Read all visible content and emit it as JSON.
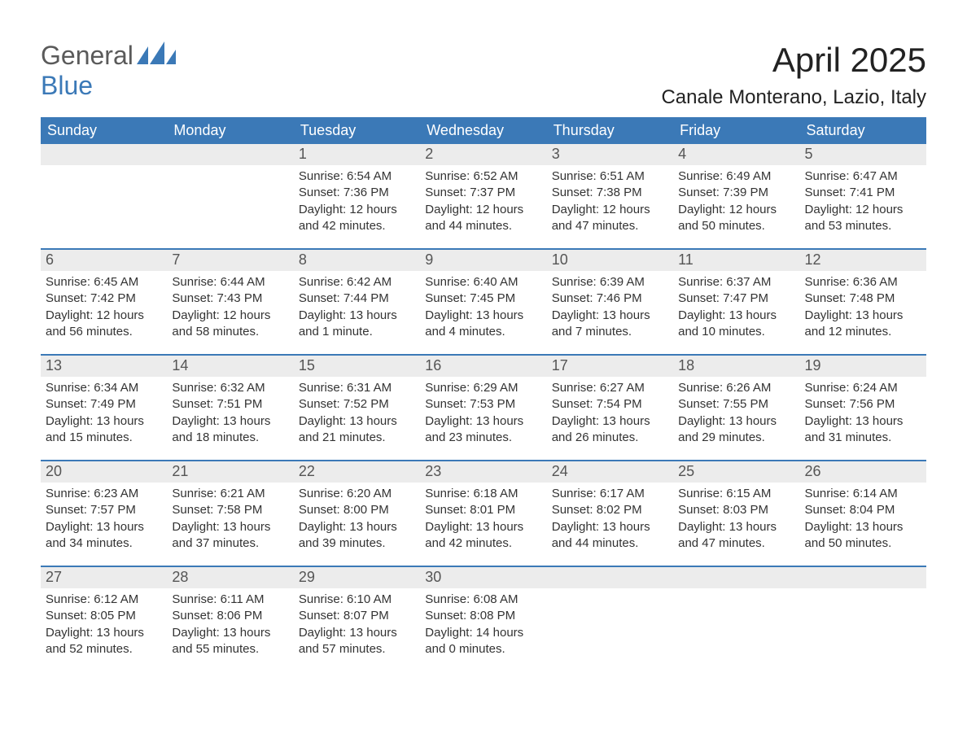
{
  "logo": {
    "part1": "General",
    "part2": "Blue"
  },
  "title": "April 2025",
  "location": "Canale Monterano, Lazio, Italy",
  "colors": {
    "header_bg": "#3b79b7",
    "header_text": "#ffffff",
    "daynum_bg": "#ececec",
    "daynum_text": "#555555",
    "body_text": "#333333",
    "divider": "#3b79b7",
    "page_bg": "#ffffff"
  },
  "day_headers": [
    "Sunday",
    "Monday",
    "Tuesday",
    "Wednesday",
    "Thursday",
    "Friday",
    "Saturday"
  ],
  "weeks": [
    [
      {
        "n": "",
        "sunrise": "",
        "sunset": "",
        "daylight": ""
      },
      {
        "n": "",
        "sunrise": "",
        "sunset": "",
        "daylight": ""
      },
      {
        "n": "1",
        "sunrise": "Sunrise: 6:54 AM",
        "sunset": "Sunset: 7:36 PM",
        "daylight": "Daylight: 12 hours and 42 minutes."
      },
      {
        "n": "2",
        "sunrise": "Sunrise: 6:52 AM",
        "sunset": "Sunset: 7:37 PM",
        "daylight": "Daylight: 12 hours and 44 minutes."
      },
      {
        "n": "3",
        "sunrise": "Sunrise: 6:51 AM",
        "sunset": "Sunset: 7:38 PM",
        "daylight": "Daylight: 12 hours and 47 minutes."
      },
      {
        "n": "4",
        "sunrise": "Sunrise: 6:49 AM",
        "sunset": "Sunset: 7:39 PM",
        "daylight": "Daylight: 12 hours and 50 minutes."
      },
      {
        "n": "5",
        "sunrise": "Sunrise: 6:47 AM",
        "sunset": "Sunset: 7:41 PM",
        "daylight": "Daylight: 12 hours and 53 minutes."
      }
    ],
    [
      {
        "n": "6",
        "sunrise": "Sunrise: 6:45 AM",
        "sunset": "Sunset: 7:42 PM",
        "daylight": "Daylight: 12 hours and 56 minutes."
      },
      {
        "n": "7",
        "sunrise": "Sunrise: 6:44 AM",
        "sunset": "Sunset: 7:43 PM",
        "daylight": "Daylight: 12 hours and 58 minutes."
      },
      {
        "n": "8",
        "sunrise": "Sunrise: 6:42 AM",
        "sunset": "Sunset: 7:44 PM",
        "daylight": "Daylight: 13 hours and 1 minute."
      },
      {
        "n": "9",
        "sunrise": "Sunrise: 6:40 AM",
        "sunset": "Sunset: 7:45 PM",
        "daylight": "Daylight: 13 hours and 4 minutes."
      },
      {
        "n": "10",
        "sunrise": "Sunrise: 6:39 AM",
        "sunset": "Sunset: 7:46 PM",
        "daylight": "Daylight: 13 hours and 7 minutes."
      },
      {
        "n": "11",
        "sunrise": "Sunrise: 6:37 AM",
        "sunset": "Sunset: 7:47 PM",
        "daylight": "Daylight: 13 hours and 10 minutes."
      },
      {
        "n": "12",
        "sunrise": "Sunrise: 6:36 AM",
        "sunset": "Sunset: 7:48 PM",
        "daylight": "Daylight: 13 hours and 12 minutes."
      }
    ],
    [
      {
        "n": "13",
        "sunrise": "Sunrise: 6:34 AM",
        "sunset": "Sunset: 7:49 PM",
        "daylight": "Daylight: 13 hours and 15 minutes."
      },
      {
        "n": "14",
        "sunrise": "Sunrise: 6:32 AM",
        "sunset": "Sunset: 7:51 PM",
        "daylight": "Daylight: 13 hours and 18 minutes."
      },
      {
        "n": "15",
        "sunrise": "Sunrise: 6:31 AM",
        "sunset": "Sunset: 7:52 PM",
        "daylight": "Daylight: 13 hours and 21 minutes."
      },
      {
        "n": "16",
        "sunrise": "Sunrise: 6:29 AM",
        "sunset": "Sunset: 7:53 PM",
        "daylight": "Daylight: 13 hours and 23 minutes."
      },
      {
        "n": "17",
        "sunrise": "Sunrise: 6:27 AM",
        "sunset": "Sunset: 7:54 PM",
        "daylight": "Daylight: 13 hours and 26 minutes."
      },
      {
        "n": "18",
        "sunrise": "Sunrise: 6:26 AM",
        "sunset": "Sunset: 7:55 PM",
        "daylight": "Daylight: 13 hours and 29 minutes."
      },
      {
        "n": "19",
        "sunrise": "Sunrise: 6:24 AM",
        "sunset": "Sunset: 7:56 PM",
        "daylight": "Daylight: 13 hours and 31 minutes."
      }
    ],
    [
      {
        "n": "20",
        "sunrise": "Sunrise: 6:23 AM",
        "sunset": "Sunset: 7:57 PM",
        "daylight": "Daylight: 13 hours and 34 minutes."
      },
      {
        "n": "21",
        "sunrise": "Sunrise: 6:21 AM",
        "sunset": "Sunset: 7:58 PM",
        "daylight": "Daylight: 13 hours and 37 minutes."
      },
      {
        "n": "22",
        "sunrise": "Sunrise: 6:20 AM",
        "sunset": "Sunset: 8:00 PM",
        "daylight": "Daylight: 13 hours and 39 minutes."
      },
      {
        "n": "23",
        "sunrise": "Sunrise: 6:18 AM",
        "sunset": "Sunset: 8:01 PM",
        "daylight": "Daylight: 13 hours and 42 minutes."
      },
      {
        "n": "24",
        "sunrise": "Sunrise: 6:17 AM",
        "sunset": "Sunset: 8:02 PM",
        "daylight": "Daylight: 13 hours and 44 minutes."
      },
      {
        "n": "25",
        "sunrise": "Sunrise: 6:15 AM",
        "sunset": "Sunset: 8:03 PM",
        "daylight": "Daylight: 13 hours and 47 minutes."
      },
      {
        "n": "26",
        "sunrise": "Sunrise: 6:14 AM",
        "sunset": "Sunset: 8:04 PM",
        "daylight": "Daylight: 13 hours and 50 minutes."
      }
    ],
    [
      {
        "n": "27",
        "sunrise": "Sunrise: 6:12 AM",
        "sunset": "Sunset: 8:05 PM",
        "daylight": "Daylight: 13 hours and 52 minutes."
      },
      {
        "n": "28",
        "sunrise": "Sunrise: 6:11 AM",
        "sunset": "Sunset: 8:06 PM",
        "daylight": "Daylight: 13 hours and 55 minutes."
      },
      {
        "n": "29",
        "sunrise": "Sunrise: 6:10 AM",
        "sunset": "Sunset: 8:07 PM",
        "daylight": "Daylight: 13 hours and 57 minutes."
      },
      {
        "n": "30",
        "sunrise": "Sunrise: 6:08 AM",
        "sunset": "Sunset: 8:08 PM",
        "daylight": "Daylight: 14 hours and 0 minutes."
      },
      {
        "n": "",
        "sunrise": "",
        "sunset": "",
        "daylight": ""
      },
      {
        "n": "",
        "sunrise": "",
        "sunset": "",
        "daylight": ""
      },
      {
        "n": "",
        "sunrise": "",
        "sunset": "",
        "daylight": ""
      }
    ]
  ]
}
